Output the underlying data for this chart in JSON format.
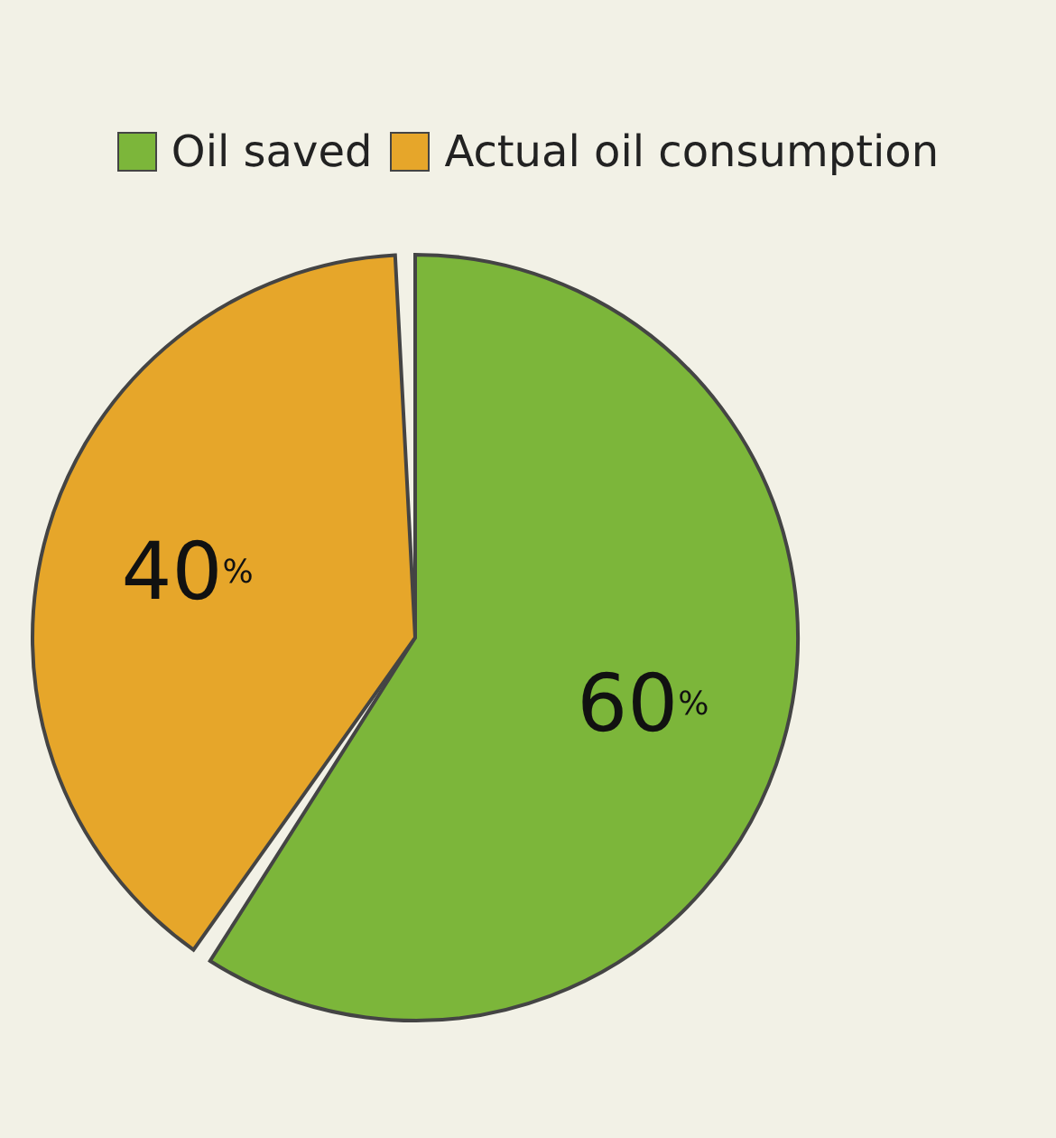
{
  "chart_data": {
    "type": "pie",
    "categories": [
      "Oil saved",
      "Actual oil consumption"
    ],
    "values": [
      60,
      40
    ],
    "colors": [
      "#7cb63a",
      "#e6a62a"
    ],
    "value_labels": [
      "60%",
      "40%"
    ],
    "legend": "top"
  }
}
